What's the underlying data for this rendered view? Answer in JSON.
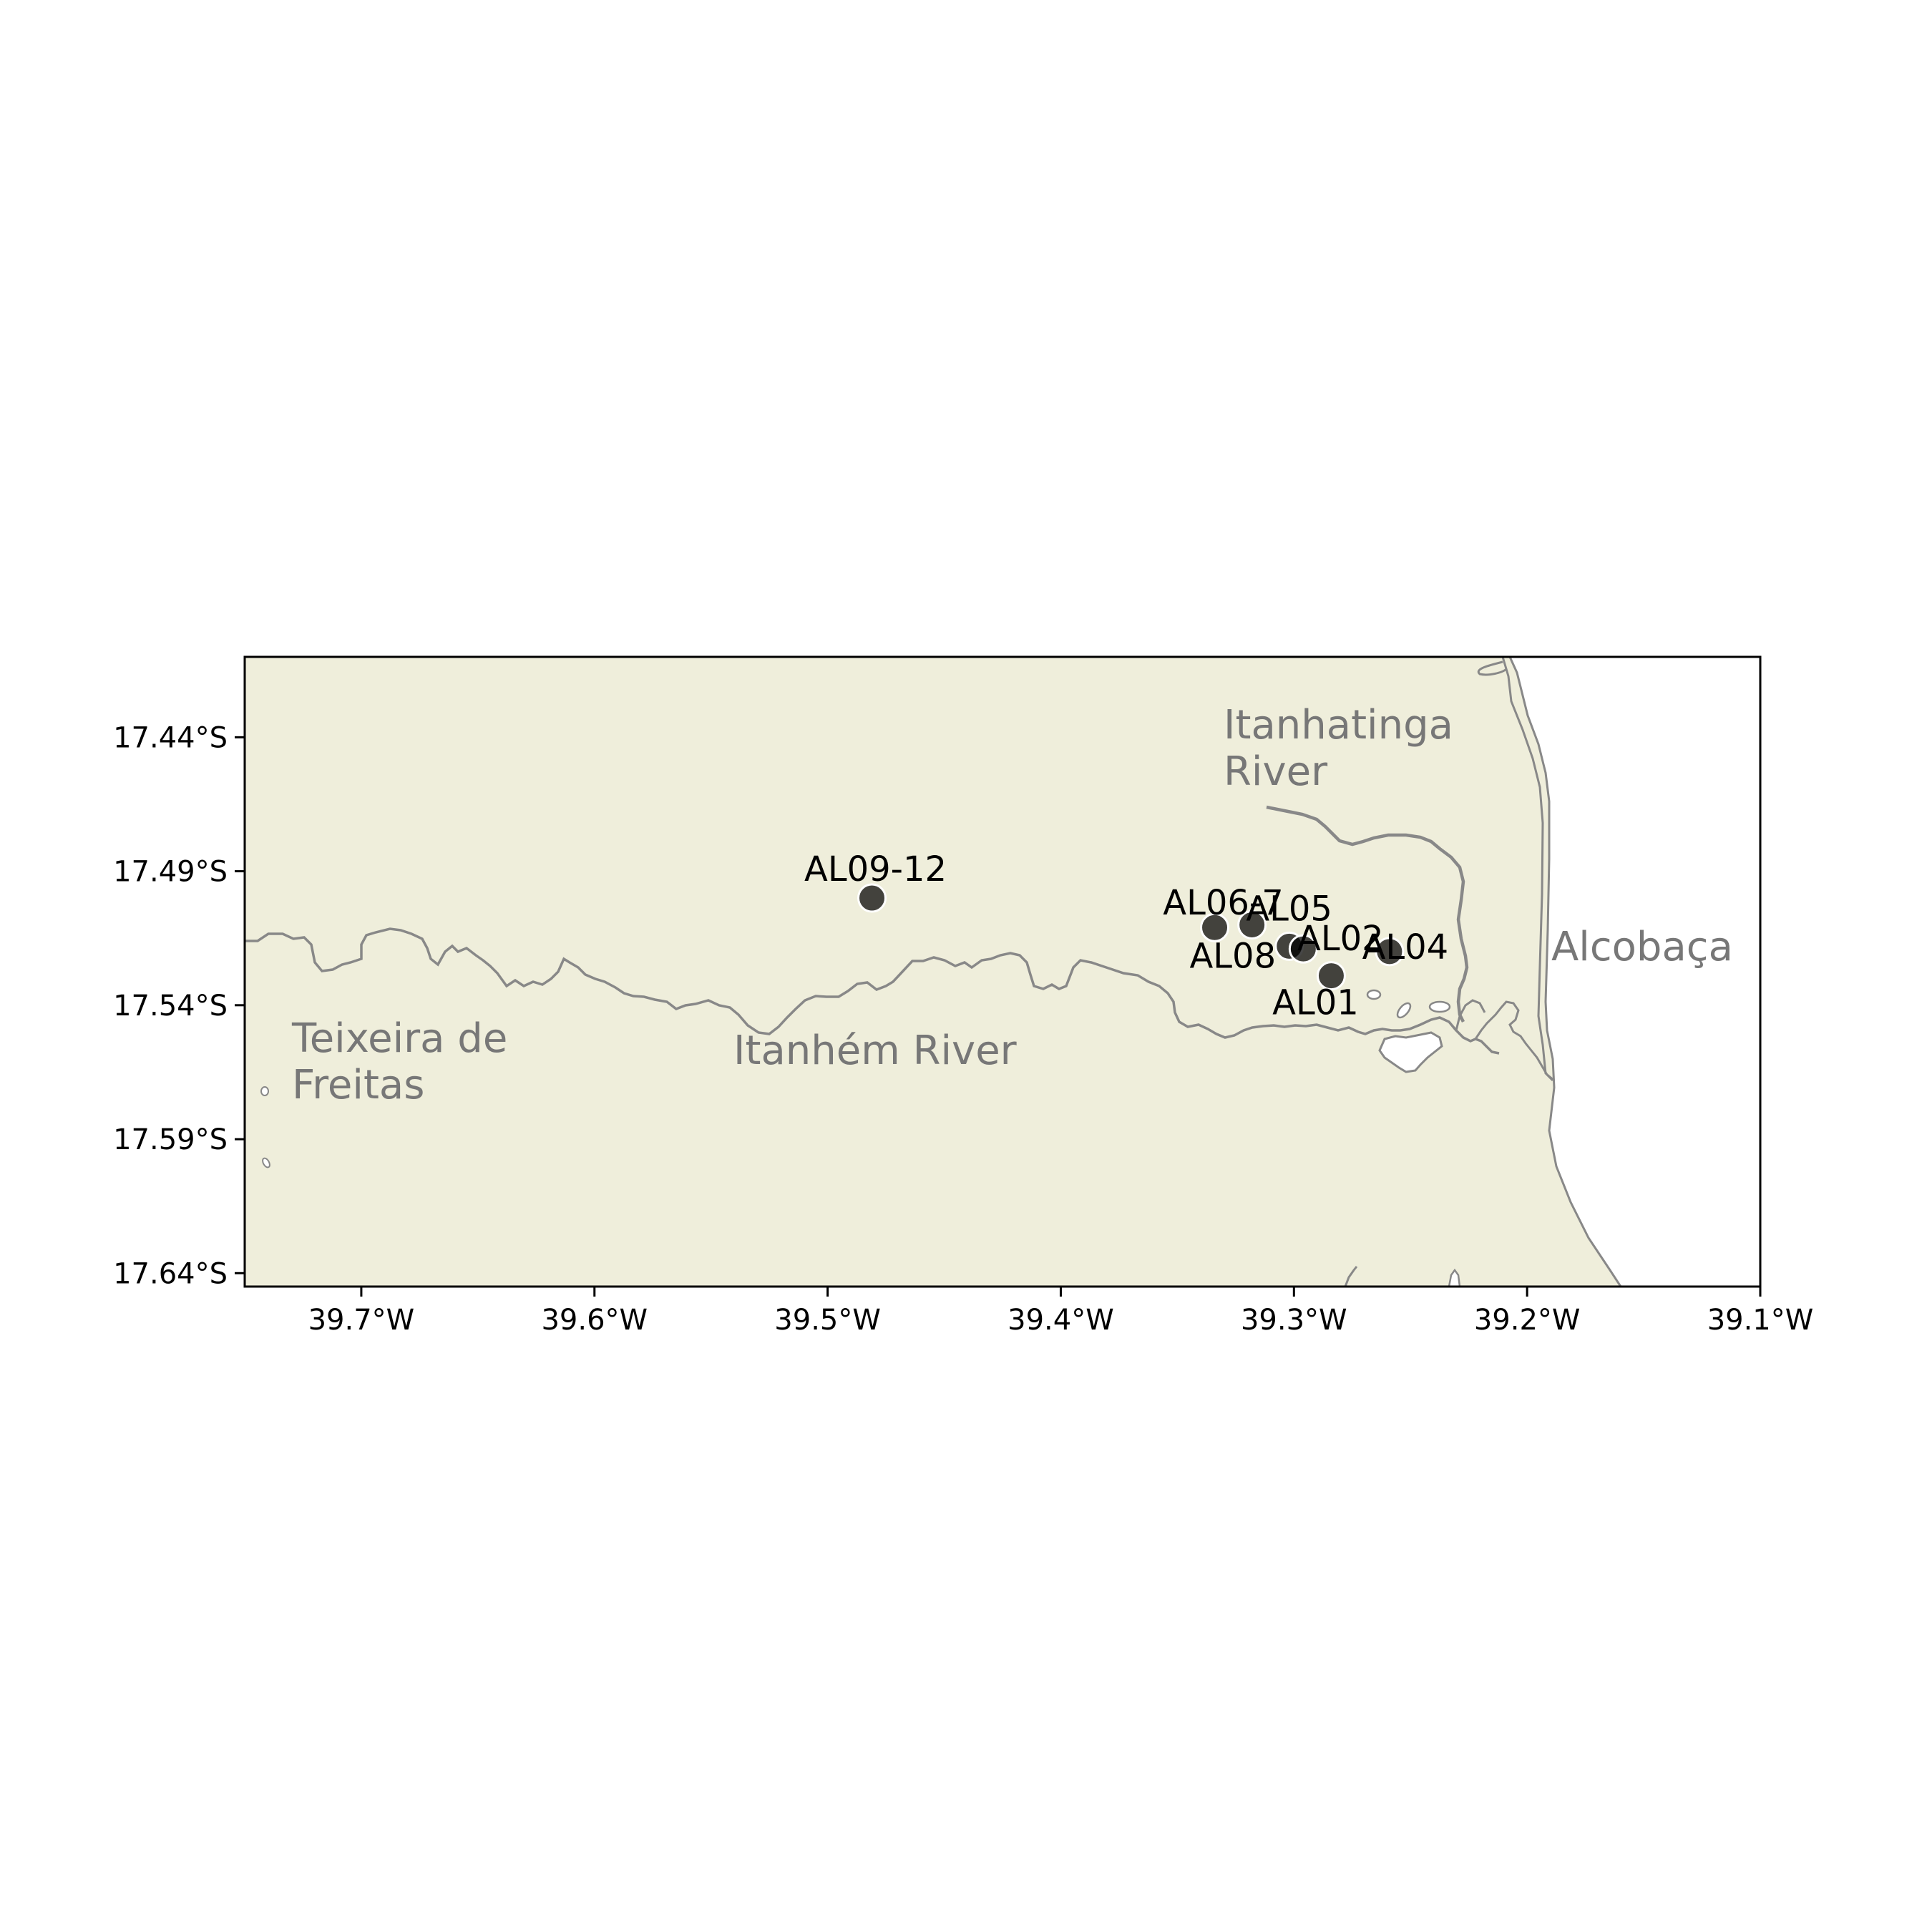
{
  "map": {
    "x_ticks": [
      "39.7°W",
      "39.6°W",
      "39.5°W",
      "39.4°W",
      "39.3°W",
      "39.2°W",
      "39.1°W"
    ],
    "y_ticks": [
      "17.44°S",
      "17.49°S",
      "17.54°S",
      "17.59°S",
      "17.64°S"
    ],
    "colors": {
      "land": "#efeedb",
      "water": "#ffffff",
      "river": "#888888",
      "coastline": "#888888",
      "frame": "#000000",
      "place_label": "#777777",
      "site_marker": "#000000"
    },
    "places": {
      "itanhatinga_line1": "Itanhatinga",
      "itanhatinga_line2": "River",
      "alcobaca": "Alcobaça",
      "teixeira_line1": "Teixeira de",
      "teixeira_line2": "Freitas",
      "itanhem": "Itanhém River"
    },
    "sites": [
      {
        "label": "AL09-12",
        "lon": -39.481,
        "lat": -17.5
      },
      {
        "label": "AL06-7",
        "lon": -39.334,
        "lat": -17.511
      },
      {
        "label": "AL05",
        "lon": -39.318,
        "lat": -17.51
      },
      {
        "label": "AL08",
        "lon": -39.302,
        "lat": -17.518
      },
      {
        "label": "AL02",
        "lon": -39.296,
        "lat": -17.519
      },
      {
        "label": "AL04",
        "lon": -39.259,
        "lat": -17.52
      },
      {
        "label": "AL01",
        "lon": -39.284,
        "lat": -17.529
      }
    ]
  }
}
